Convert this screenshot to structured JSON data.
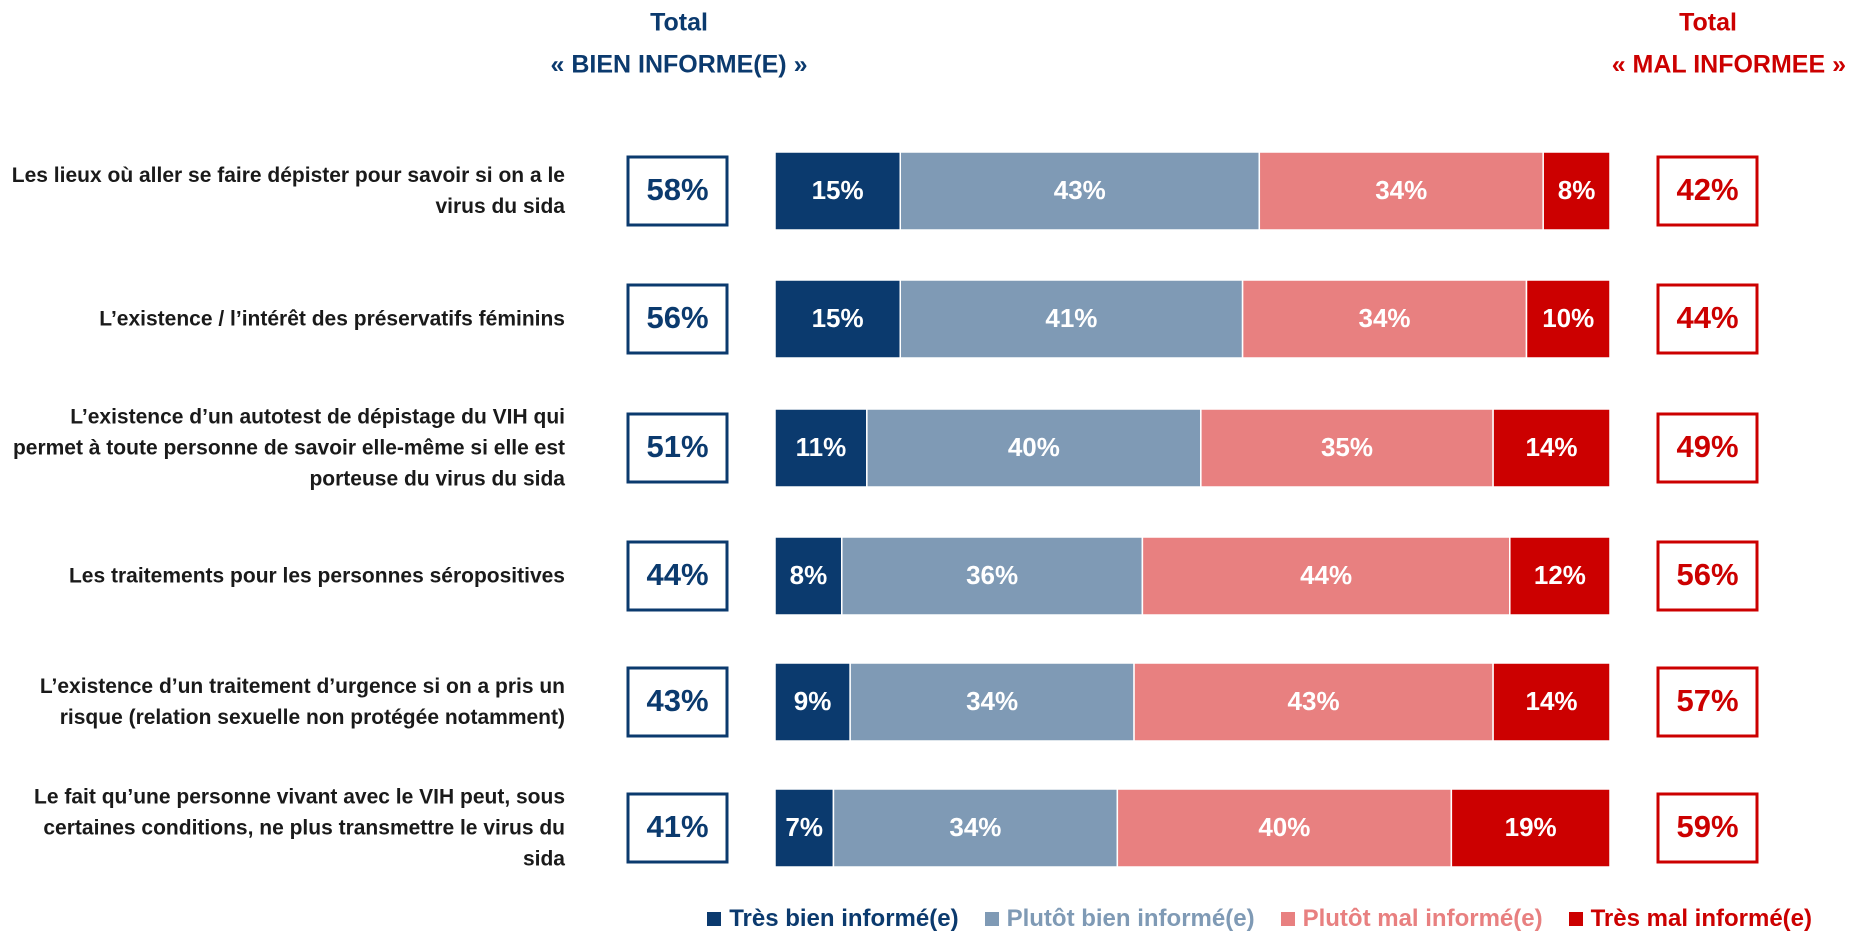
{
  "chart_data": {
    "type": "bar",
    "orientation": "horizontal",
    "stacked": true,
    "left_title": [
      "Total",
      "« BIEN INFORME(E) »"
    ],
    "right_title": [
      "Total",
      "« MAL INFORMEE »"
    ],
    "categories": [
      "Les lieux où aller se faire dépister pour savoir si on a le virus du sida",
      "L’existence / l’intérêt des préservatifs féminins",
      "L’existence d’un autotest de dépistage du VIH qui permet à toute personne de savoir elle-même si elle est porteuse du virus du sida",
      "Les traitements pour les personnes séropositives",
      "L’existence d’un traitement d’urgence si on a pris un risque (relation sexuelle non protégée notamment)",
      "Le fait qu’une personne vivant avec le VIH peut, sous certaines conditions, ne plus transmettre le virus du sida"
    ],
    "xlim": [
      0,
      100
    ],
    "series": [
      {
        "name": "Très bien informé(e)",
        "color": "#0b3a6e",
        "values": [
          15,
          15,
          11,
          8,
          9,
          7
        ],
        "value_labels": [
          "15%",
          "15%",
          "11%",
          "8%",
          "9%",
          "7%"
        ]
      },
      {
        "name": "Plutôt bien informé(e)",
        "color": "#7f9ab5",
        "values": [
          43,
          41,
          40,
          36,
          34,
          34
        ],
        "value_labels": [
          "43%",
          "41%",
          "40%",
          "36%",
          "34%",
          "34%"
        ]
      },
      {
        "name": "Plutôt mal informé(e)",
        "color": "#e88080",
        "values": [
          34,
          34,
          35,
          44,
          43,
          40
        ],
        "value_labels": [
          "34%",
          "34%",
          "35%",
          "44%",
          "43%",
          "40%"
        ]
      },
      {
        "name": "Très mal informé(e)",
        "color": "#cc0000",
        "values": [
          8,
          10,
          14,
          12,
          14,
          19
        ],
        "value_labels": [
          "8%",
          "10%",
          "14%",
          "12%",
          "14%",
          "19%"
        ]
      }
    ],
    "totals_left": {
      "color": "#0b3a6e",
      "values": [
        58,
        56,
        51,
        44,
        43,
        41
      ],
      "value_labels": [
        "58%",
        "56%",
        "51%",
        "44%",
        "43%",
        "41%"
      ]
    },
    "totals_right": {
      "color": "#cc0000",
      "values": [
        42,
        44,
        49,
        56,
        57,
        59
      ],
      "value_labels": [
        "42%",
        "44%",
        "49%",
        "56%",
        "57%",
        "59%"
      ]
    },
    "legend": "bottom"
  }
}
